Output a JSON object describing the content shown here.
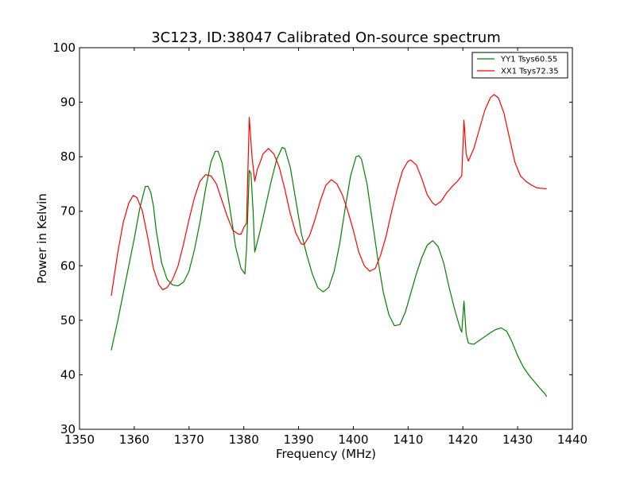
{
  "chart_data": {
    "type": "line",
    "title": "3C123, ID:38047 Calibrated On-source spectrum",
    "xlabel": "Frequency (MHz)",
    "ylabel": "Power in Kelvin",
    "xlim": [
      1350,
      1440
    ],
    "ylim": [
      30,
      100
    ],
    "xticks": [
      1350,
      1360,
      1370,
      1380,
      1390,
      1400,
      1410,
      1420,
      1430,
      1440
    ],
    "yticks": [
      30,
      40,
      50,
      60,
      70,
      80,
      90,
      100
    ],
    "grid": false,
    "legend": "top-right",
    "series": [
      {
        "name": "YY1 Tsys60.55",
        "color": "#008000",
        "points": [
          [
            1355.8,
            44.5
          ],
          [
            1357,
            50
          ],
          [
            1358.5,
            57.5
          ],
          [
            1360,
            65
          ],
          [
            1361,
            70.5
          ],
          [
            1362,
            74.5
          ],
          [
            1362.5,
            74.6
          ],
          [
            1363,
            73.5
          ],
          [
            1363.5,
            71
          ],
          [
            1364,
            66.5
          ],
          [
            1365,
            60.5
          ],
          [
            1366,
            57.5
          ],
          [
            1367,
            56.5
          ],
          [
            1368,
            56.3
          ],
          [
            1369,
            57
          ],
          [
            1370,
            59
          ],
          [
            1371,
            63
          ],
          [
            1372,
            68
          ],
          [
            1373,
            74
          ],
          [
            1374,
            79
          ],
          [
            1374.8,
            81
          ],
          [
            1375.3,
            81
          ],
          [
            1376,
            79
          ],
          [
            1377,
            73.5
          ],
          [
            1378,
            67
          ],
          [
            1378.5,
            63.5
          ],
          [
            1379,
            61.5
          ],
          [
            1379.5,
            59.5
          ],
          [
            1380.2,
            58.5
          ],
          [
            1380.5,
            63
          ],
          [
            1381,
            77.5
          ],
          [
            1381.3,
            77
          ],
          [
            1381.7,
            70
          ],
          [
            1382,
            62.5
          ],
          [
            1382.5,
            64.5
          ],
          [
            1383,
            66.5
          ],
          [
            1384,
            71
          ],
          [
            1385,
            75.5
          ],
          [
            1386,
            79.5
          ],
          [
            1387,
            81.7
          ],
          [
            1387.5,
            81.5
          ],
          [
            1388.5,
            78
          ],
          [
            1389.5,
            72
          ],
          [
            1390.5,
            66
          ],
          [
            1391.5,
            62
          ],
          [
            1392.5,
            58.5
          ],
          [
            1393.5,
            56
          ],
          [
            1394.5,
            55.2
          ],
          [
            1395.5,
            56
          ],
          [
            1396.5,
            59
          ],
          [
            1397.5,
            64
          ],
          [
            1398.5,
            70.5
          ],
          [
            1399.5,
            76.5
          ],
          [
            1400.5,
            80
          ],
          [
            1401,
            80.2
          ],
          [
            1401.5,
            79.5
          ],
          [
            1402.5,
            75
          ],
          [
            1403.5,
            68
          ],
          [
            1404.5,
            61
          ],
          [
            1405.5,
            55
          ],
          [
            1406.5,
            51
          ],
          [
            1407.5,
            49
          ],
          [
            1408.5,
            49.2
          ],
          [
            1409.5,
            51.5
          ],
          [
            1410.5,
            55
          ],
          [
            1411.5,
            58.5
          ],
          [
            1412.5,
            61.5
          ],
          [
            1413.5,
            63.8
          ],
          [
            1414.5,
            64.6
          ],
          [
            1415.5,
            63.5
          ],
          [
            1416.5,
            60.5
          ],
          [
            1417.5,
            56
          ],
          [
            1418.5,
            52
          ],
          [
            1419.5,
            48.5
          ],
          [
            1419.8,
            47.8
          ],
          [
            1420.2,
            53.5
          ],
          [
            1420.6,
            47.5
          ],
          [
            1421,
            45.8
          ],
          [
            1422,
            45.6
          ],
          [
            1423,
            46.3
          ],
          [
            1424,
            47
          ],
          [
            1425,
            47.7
          ],
          [
            1426,
            48.3
          ],
          [
            1427,
            48.6
          ],
          [
            1428,
            48
          ],
          [
            1429,
            46
          ],
          [
            1430,
            43.5
          ],
          [
            1431,
            41.5
          ],
          [
            1432,
            40
          ],
          [
            1433,
            38.8
          ],
          [
            1434,
            37.6
          ],
          [
            1435,
            36.5
          ],
          [
            1435.3,
            36
          ]
        ]
      },
      {
        "name": "XX1 Tsys72.35",
        "color": "#ff0000",
        "points": [
          [
            1355.8,
            54.5
          ],
          [
            1357,
            62.5
          ],
          [
            1358,
            68
          ],
          [
            1359,
            71.5
          ],
          [
            1359.8,
            72.9
          ],
          [
            1360.5,
            72.5
          ],
          [
            1361.5,
            70
          ],
          [
            1362.5,
            65
          ],
          [
            1363.5,
            59.5
          ],
          [
            1364.5,
            56.5
          ],
          [
            1365.2,
            55.6
          ],
          [
            1366,
            56
          ],
          [
            1367,
            57.5
          ],
          [
            1368,
            60
          ],
          [
            1369,
            64
          ],
          [
            1370,
            68.5
          ],
          [
            1371,
            72.5
          ],
          [
            1372,
            75.5
          ],
          [
            1373,
            76.7
          ],
          [
            1374,
            76.5
          ],
          [
            1375,
            75
          ],
          [
            1376,
            72
          ],
          [
            1377,
            69
          ],
          [
            1378,
            66.5
          ],
          [
            1379,
            65.8
          ],
          [
            1379.5,
            65.8
          ],
          [
            1380,
            67
          ],
          [
            1380.5,
            67.8
          ],
          [
            1381,
            87.2
          ],
          [
            1381.5,
            80
          ],
          [
            1382,
            75.5
          ],
          [
            1382.5,
            77.8
          ],
          [
            1383,
            79
          ],
          [
            1383.5,
            80.5
          ],
          [
            1384.5,
            81.5
          ],
          [
            1385.5,
            80.5
          ],
          [
            1386.5,
            78
          ],
          [
            1387.5,
            74
          ],
          [
            1388.5,
            69.5
          ],
          [
            1389.5,
            66
          ],
          [
            1390.5,
            64
          ],
          [
            1391,
            63.9
          ],
          [
            1392,
            65.5
          ],
          [
            1393,
            68.5
          ],
          [
            1394,
            72
          ],
          [
            1395,
            74.8
          ],
          [
            1396,
            75.8
          ],
          [
            1397,
            75
          ],
          [
            1398,
            73
          ],
          [
            1399,
            70
          ],
          [
            1400,
            66.5
          ],
          [
            1401,
            62.5
          ],
          [
            1402,
            60
          ],
          [
            1403,
            59
          ],
          [
            1404,
            59.5
          ],
          [
            1405,
            62
          ],
          [
            1406,
            65.5
          ],
          [
            1407,
            70
          ],
          [
            1408,
            74
          ],
          [
            1409,
            77.5
          ],
          [
            1410,
            79.2
          ],
          [
            1410.5,
            79.4
          ],
          [
            1411.5,
            78.5
          ],
          [
            1412.5,
            76
          ],
          [
            1413.5,
            73
          ],
          [
            1414.5,
            71.5
          ],
          [
            1415,
            71.1
          ],
          [
            1416,
            71.8
          ],
          [
            1417,
            73.3
          ],
          [
            1418,
            74.5
          ],
          [
            1419,
            75.5
          ],
          [
            1419.8,
            76.5
          ],
          [
            1420.2,
            86.7
          ],
          [
            1420.6,
            80.5
          ],
          [
            1421,
            79.2
          ],
          [
            1422,
            81.5
          ],
          [
            1423,
            85
          ],
          [
            1424,
            88.5
          ],
          [
            1425,
            90.8
          ],
          [
            1425.7,
            91.4
          ],
          [
            1426.5,
            90.8
          ],
          [
            1427.5,
            88
          ],
          [
            1428.5,
            83.5
          ],
          [
            1429.5,
            79
          ],
          [
            1430.5,
            76.5
          ],
          [
            1431.5,
            75.5
          ],
          [
            1432.5,
            74.8
          ],
          [
            1433.5,
            74.3
          ],
          [
            1434.5,
            74.2
          ],
          [
            1435.3,
            74.1
          ]
        ]
      }
    ]
  }
}
